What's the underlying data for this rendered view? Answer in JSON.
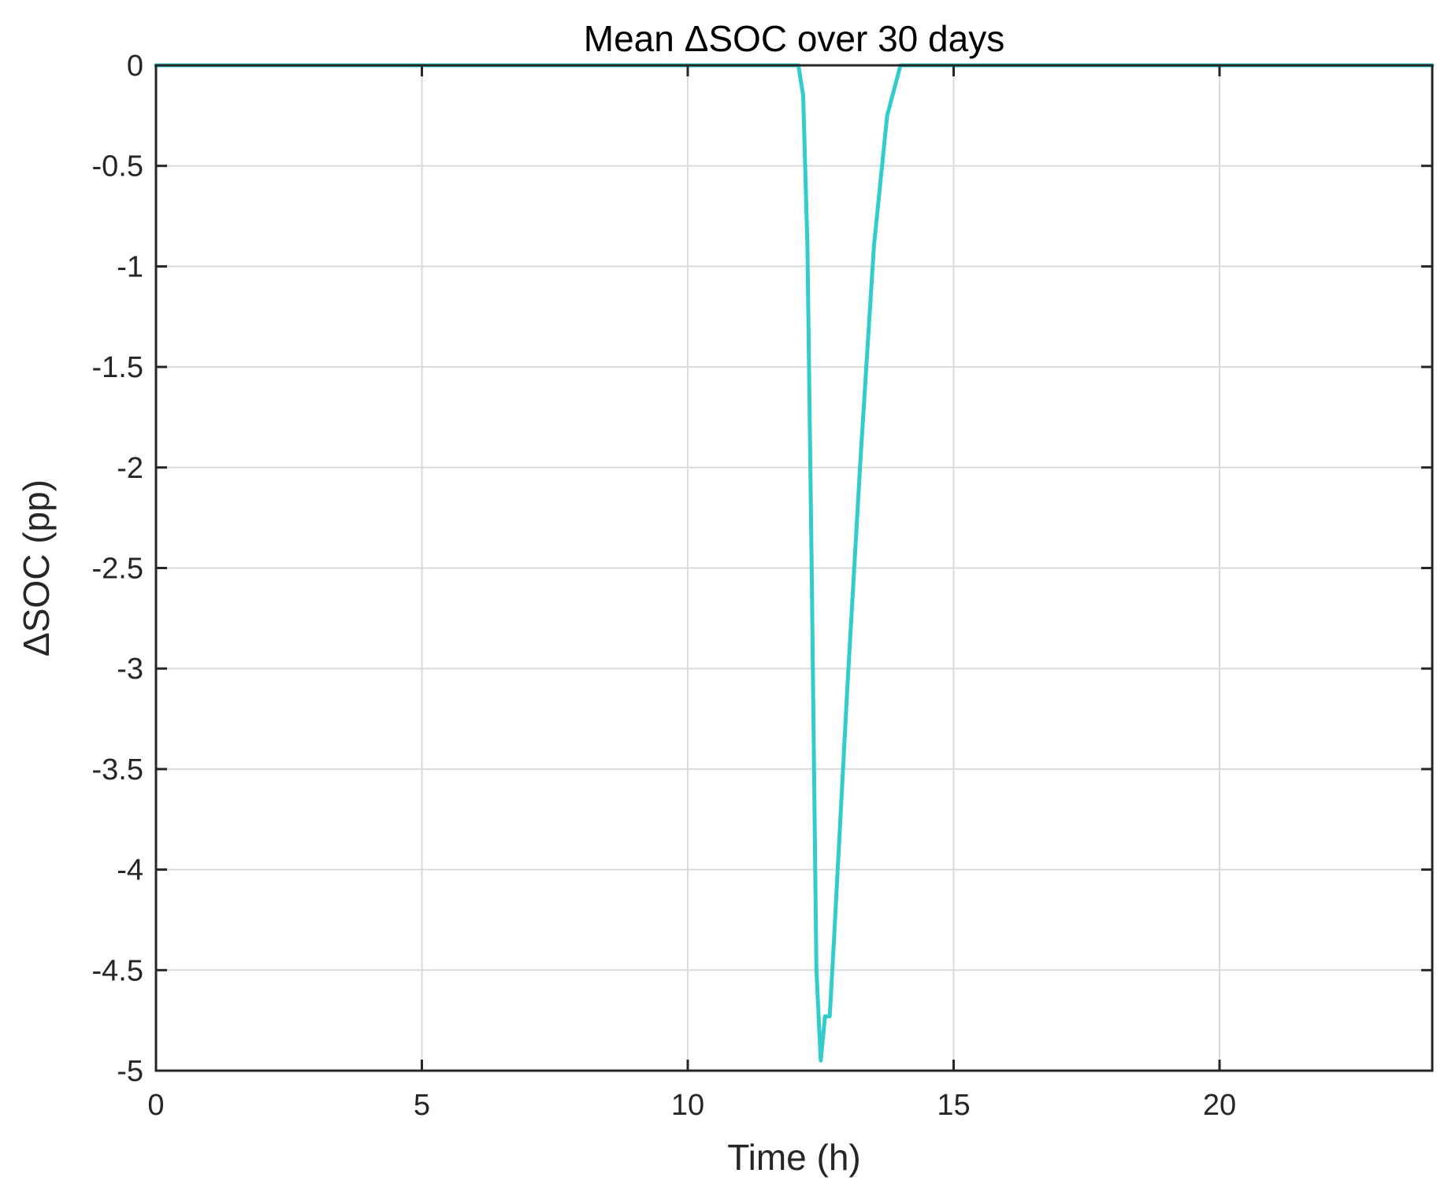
{
  "chart_data": {
    "type": "line",
    "title": "Mean ΔSOC over 30 days",
    "xlabel": "Time (h)",
    "ylabel": "ΔSOC (pp)",
    "xlim": [
      0,
      24
    ],
    "ylim": [
      -5,
      0
    ],
    "xticks": [
      0,
      5,
      10,
      15,
      20
    ],
    "xtick_labels": [
      "0",
      "5",
      "10",
      "15",
      "20"
    ],
    "yticks": [
      0,
      -0.5,
      -1,
      -1.5,
      -2,
      -2.5,
      -3,
      -3.5,
      -4,
      -4.5,
      -5
    ],
    "ytick_labels": [
      "0",
      "-0.5",
      "-1",
      "-1.5",
      "-2",
      "-2.5",
      "-3",
      "-3.5",
      "-4",
      "-4.5",
      "-5"
    ],
    "grid": true,
    "series": [
      {
        "color": "#33cccc",
        "x": [
          0,
          12.08,
          12.17,
          12.25,
          12.33,
          12.42,
          12.5,
          12.58,
          12.67,
          12.75,
          13.0,
          13.25,
          13.5,
          13.75,
          14.0,
          14.1,
          24
        ],
        "y": [
          0,
          0,
          -0.15,
          -0.9,
          -2.5,
          -4.5,
          -4.95,
          -4.73,
          -4.73,
          -4.35,
          -3.1,
          -1.95,
          -0.9,
          -0.25,
          0,
          0,
          0
        ]
      }
    ]
  }
}
